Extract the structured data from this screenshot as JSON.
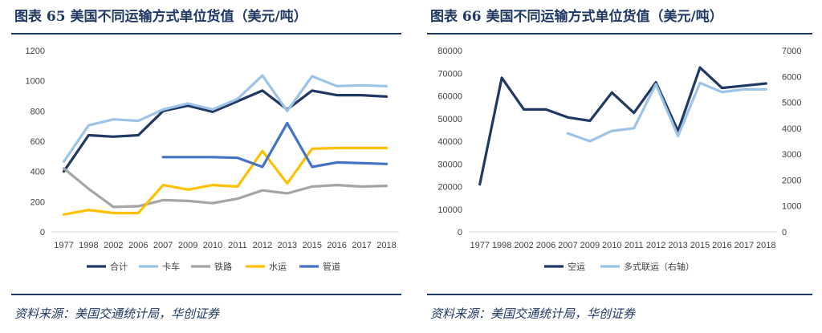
{
  "figure_left": {
    "title": "图表 65   美国不同运输方式单位货值（美元/吨）",
    "source": "资料来源：美国交通统计局，华创证券"
  },
  "figure_right": {
    "title": "图表 66   美国不同运输方式单位货值（美元/吨）",
    "source": "资料来源：美国交通统计局，华创证券"
  },
  "chart_data": [
    {
      "type": "line",
      "title": "",
      "xlabel": "",
      "ylabel": "",
      "categories": [
        "1977",
        "1998",
        "2002",
        "2006",
        "2007",
        "2009",
        "2010",
        "2011",
        "2012",
        "2013",
        "2015",
        "2016",
        "2017",
        "2018"
      ],
      "ylim": [
        0,
        1200
      ],
      "yticks": [
        "0",
        "200",
        "400",
        "600",
        "800",
        "1000",
        "1200"
      ],
      "grid": false,
      "legend_position": "bottom",
      "series": [
        {
          "name": "合计",
          "color": "#1f3864",
          "values": [
            400,
            640,
            630,
            640,
            800,
            835,
            795,
            865,
            935,
            810,
            935,
            905,
            905,
            895
          ]
        },
        {
          "name": "卡车",
          "color": "#9dc3e6",
          "values": [
            465,
            705,
            745,
            735,
            810,
            850,
            810,
            880,
            1035,
            800,
            1030,
            965,
            970,
            965
          ]
        },
        {
          "name": "铁路",
          "color": "#a5a5a5",
          "values": [
            420,
            285,
            165,
            170,
            210,
            205,
            190,
            220,
            275,
            255,
            300,
            310,
            300,
            305
          ]
        },
        {
          "name": "水运",
          "color": "#ffc000",
          "values": [
            115,
            145,
            125,
            125,
            310,
            280,
            310,
            300,
            535,
            320,
            550,
            555,
            555,
            555
          ]
        },
        {
          "name": "管道",
          "color": "#4472c4",
          "values": [
            null,
            null,
            null,
            null,
            495,
            495,
            495,
            490,
            430,
            720,
            430,
            460,
            455,
            450
          ]
        }
      ]
    },
    {
      "type": "line",
      "title": "",
      "xlabel": "",
      "ylabel": "",
      "categories": [
        "1977",
        "1998",
        "2002",
        "2006",
        "2007",
        "2009",
        "2010",
        "2011",
        "2012",
        "2013",
        "2015",
        "2016",
        "2017",
        "2018"
      ],
      "ylim": [
        0,
        80000
      ],
      "yticks": [
        "0",
        "10000",
        "20000",
        "30000",
        "40000",
        "50000",
        "60000",
        "70000",
        "80000"
      ],
      "y2lim": [
        0,
        7000
      ],
      "y2ticks": [
        "0",
        "1000",
        "2000",
        "3000",
        "4000",
        "5000",
        "6000",
        "7000"
      ],
      "grid": false,
      "legend_position": "bottom",
      "series": [
        {
          "name": "空运",
          "axis": "left",
          "color": "#1f3864",
          "values": [
            21000,
            68000,
            54000,
            54000,
            50500,
            49000,
            61500,
            52500,
            66000,
            44500,
            72500,
            63500,
            64500,
            65500
          ]
        },
        {
          "name": "多式联运（右轴）",
          "axis": "right",
          "color": "#9dc3e6",
          "values": [
            null,
            null,
            null,
            null,
            3800,
            3500,
            3900,
            4000,
            5700,
            3700,
            5750,
            5400,
            5500,
            5500
          ]
        }
      ]
    }
  ]
}
